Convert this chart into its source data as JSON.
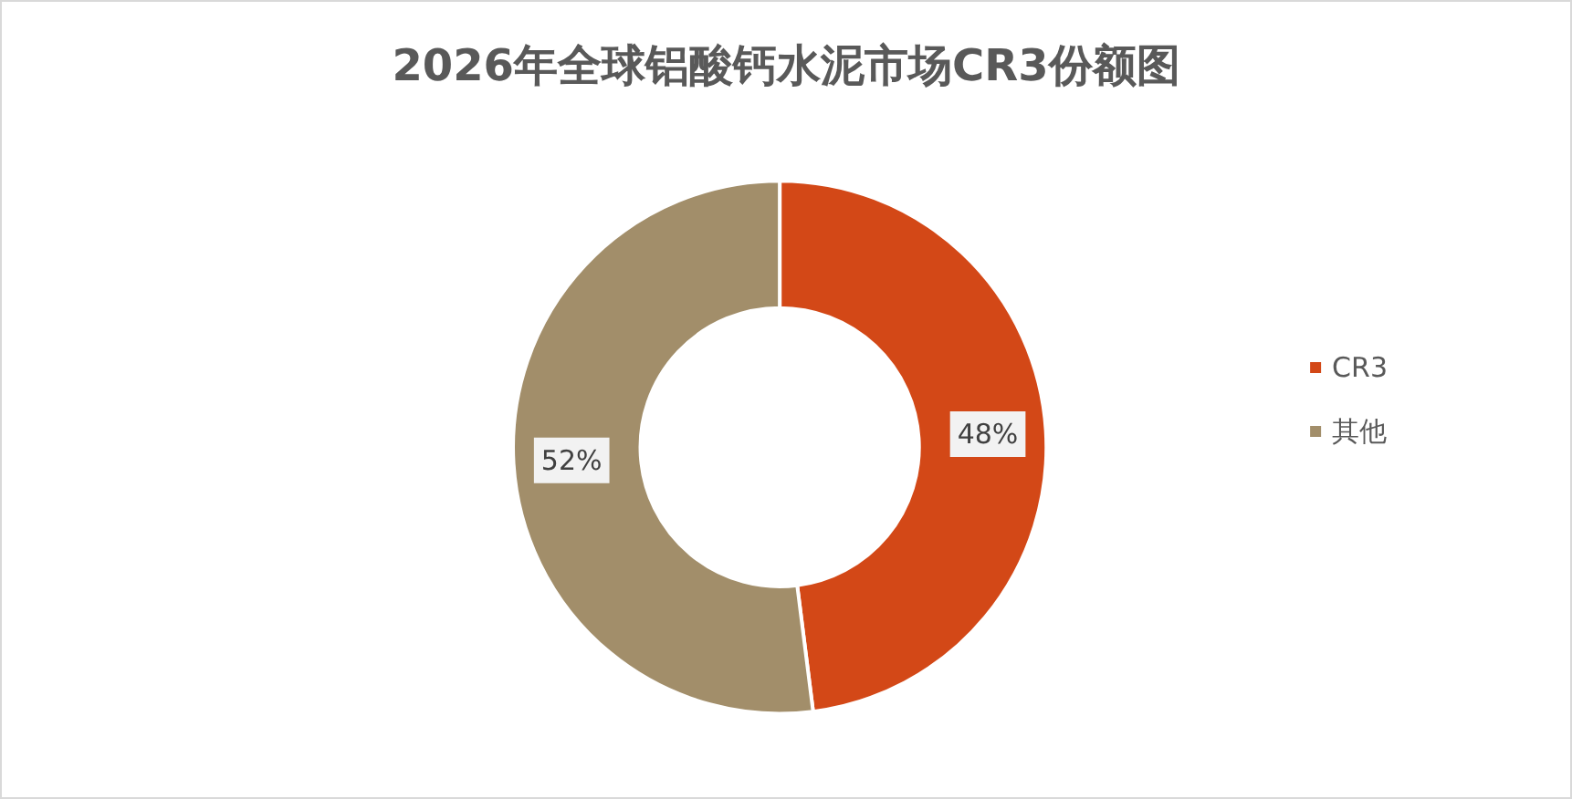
{
  "chart_data": {
    "type": "donut",
    "title": "2026年全球铝酸钙水泥市场CR3份额图",
    "categories": [
      "CR3",
      "其他"
    ],
    "values": [
      48,
      52
    ],
    "colors": [
      "#d34817",
      "#a28e6a"
    ],
    "value_labels": [
      "48%",
      "52%"
    ],
    "legend": "right"
  }
}
